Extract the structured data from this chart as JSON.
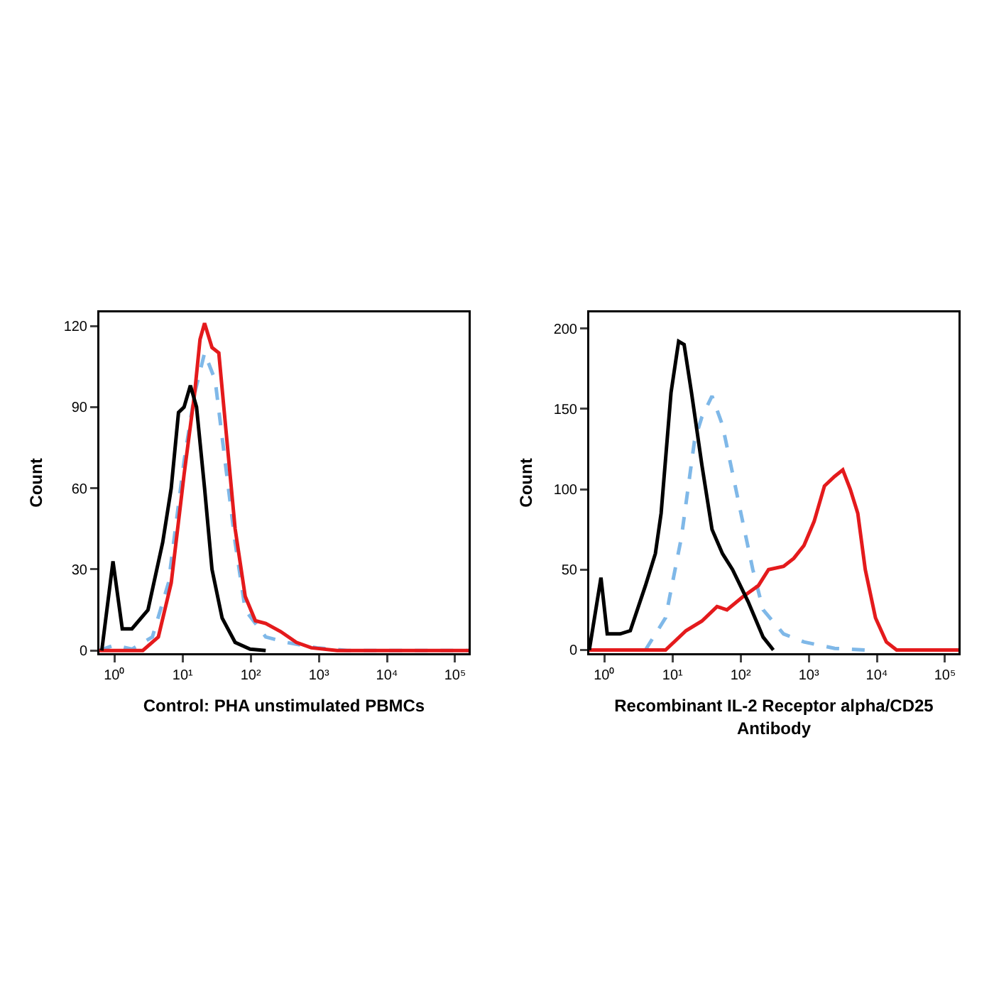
{
  "chart_data": [
    {
      "type": "line",
      "xlabel": "Control: PHA unstimulated PBMCs",
      "ylabel": "Count",
      "log": "x",
      "xlim": [
        0.6,
        158000
      ],
      "xticks": [
        {
          "value": 1,
          "label": "10⁰"
        },
        {
          "value": 10,
          "label": "10¹"
        },
        {
          "value": 100,
          "label": "10²"
        },
        {
          "value": 1000,
          "label": "10³"
        },
        {
          "value": 10000,
          "label": "10⁴"
        },
        {
          "value": 100000,
          "label": "10⁵"
        }
      ],
      "ylim": [
        -1,
        125
      ],
      "yticks": [
        0,
        30,
        60,
        90,
        120
      ],
      "series": [
        {
          "color": "#7fb8e8",
          "line_style": "dashed",
          "x": [
            0.6,
            1,
            1.8,
            3.6,
            6.2,
            10.5,
            15,
            21,
            30,
            42,
            59,
            83,
            166,
            331,
            933,
            2630,
            158000
          ],
          "values": [
            0,
            2,
            0.5,
            5,
            25,
            70,
            95,
            110,
            100,
            70,
            40,
            15,
            5,
            3,
            1,
            0,
            0
          ]
        },
        {
          "color": "#e41a1c",
          "line_style": "solid",
          "x": [
            0.6,
            2.6,
            4.4,
            6.8,
            10.5,
            15,
            18,
            21,
            27,
            34,
            42,
            59,
            83,
            117,
            166,
            275,
            468,
            776,
            1860,
            158000
          ],
          "values": [
            0,
            0,
            5,
            25,
            65,
            95,
            115,
            121,
            112,
            110,
            85,
            45,
            20,
            11,
            10,
            7,
            3,
            1,
            0,
            0
          ]
        },
        {
          "color": "#000000",
          "line_style": "solid",
          "x": [
            0.65,
            0.95,
            1.3,
            1.8,
            3.1,
            5.1,
            6.8,
            8.7,
            10.5,
            13,
            16,
            21,
            27,
            38,
            59,
            98,
            166
          ],
          "values": [
            0,
            33,
            8,
            8,
            15,
            40,
            60,
            88,
            90,
            98,
            90,
            60,
            30,
            12,
            3,
            0.5,
            0
          ]
        }
      ]
    },
    {
      "type": "line",
      "xlabel": "Recombinant IL-2 Receptor alpha/CD25 Antibody",
      "ylabel": "Count",
      "log": "x",
      "xlim": [
        0.6,
        158000
      ],
      "xticks": [
        {
          "value": 1,
          "label": "10⁰"
        },
        {
          "value": 10,
          "label": "10¹"
        },
        {
          "value": 100,
          "label": "10²"
        },
        {
          "value": 1000,
          "label": "10³"
        },
        {
          "value": 10000,
          "label": "10⁴"
        },
        {
          "value": 100000,
          "label": "10⁵"
        }
      ],
      "ylim": [
        -2,
        210
      ],
      "yticks": [
        0,
        50,
        100,
        150,
        200
      ],
      "series": [
        {
          "color": "#7fb8e8",
          "line_style": "dashed",
          "x": [
            4,
            7.9,
            13.5,
            21,
            27,
            38,
            54,
            76,
            107,
            151,
            214,
            427,
            851,
            2400,
            6760
          ],
          "values": [
            0,
            20,
            70,
            130,
            145,
            158,
            140,
            110,
            80,
            50,
            25,
            10,
            5,
            1,
            0
          ]
        },
        {
          "color": "#e41a1c",
          "line_style": "solid",
          "x": [
            0.6,
            7.9,
            15.8,
            27,
            45,
            63,
            107,
            182,
            257,
            427,
            603,
            851,
            1200,
            1700,
            2400,
            3160,
            4070,
            5250,
            6760,
            9550,
            13800,
            19500,
            158000
          ],
          "values": [
            0,
            0,
            12,
            18,
            27,
            25,
            33,
            40,
            50,
            52,
            57,
            65,
            80,
            102,
            108,
            112,
            100,
            85,
            50,
            20,
            5,
            0,
            0
          ]
        },
        {
          "color": "#000000",
          "line_style": "solid",
          "x": [
            0.6,
            0.89,
            1.1,
            1.7,
            2.4,
            4,
            5.6,
            6.8,
            9.5,
            12.3,
            14.8,
            19,
            27,
            38,
            54,
            76,
            129,
            214,
            302
          ],
          "values": [
            0,
            45,
            10,
            10,
            12,
            40,
            60,
            85,
            160,
            192,
            190,
            160,
            115,
            75,
            60,
            50,
            30,
            8,
            0
          ]
        }
      ]
    }
  ]
}
